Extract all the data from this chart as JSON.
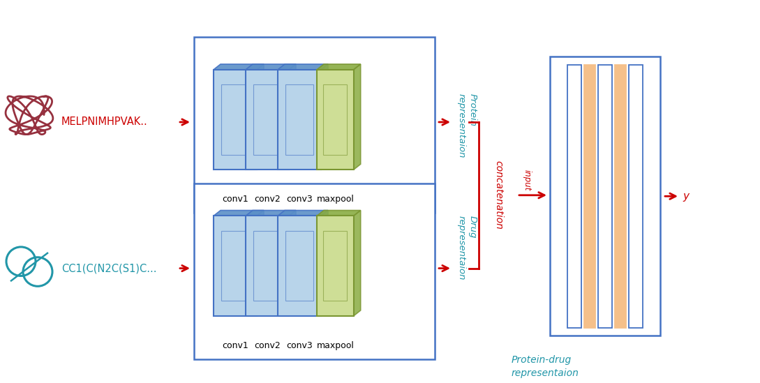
{
  "bg_color": "#ffffff",
  "red_color": "#cc0000",
  "blue_color": "#4472c4",
  "cyan_color": "#2196a8",
  "conv_blue_face": "#b8d4ea",
  "conv_blue_edge": "#4472c4",
  "conv_blue_dark": "#5b8fc7",
  "maxpool_green_face": "#cede96",
  "maxpool_green_edge": "#7a9632",
  "maxpool_green_dark": "#8aac42",
  "orange_color": "#f5c08a",
  "protein_text": "MELPNIMHPVAK..",
  "drug_text": "CC1(C(N2C(S1)C...",
  "conv_labels": [
    "conv1",
    "conv2",
    "conv3",
    "maxpool"
  ],
  "protein_rep_text": "Protein\nrepresentaion",
  "drug_rep_text": "Drug\nrepresentaion",
  "concat_text": "concatenation",
  "input_text": "input",
  "y_text": "y",
  "protein_drug_text": "Protein-drug\nrepresentaion",
  "nn_border_color": "#4472c4",
  "figsize": [
    10.89,
    5.49
  ],
  "dpi": 100
}
